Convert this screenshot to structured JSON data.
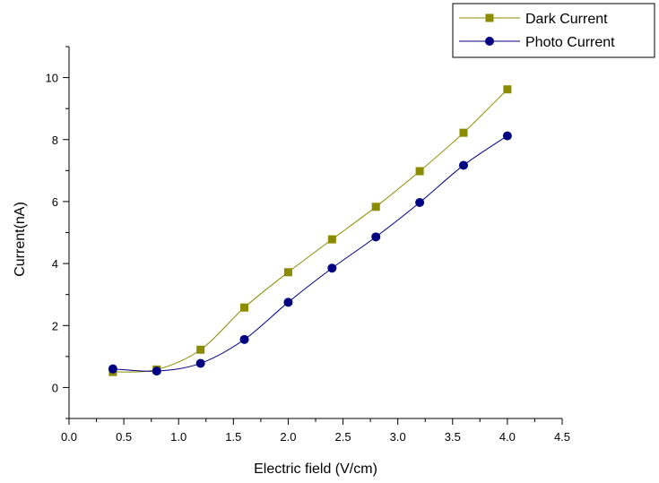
{
  "chart_data": {
    "type": "line",
    "xlabel": "Electric field (V/cm)",
    "ylabel": "Current(nA)",
    "xlim": [
      0.0,
      4.5
    ],
    "ylim": [
      -1,
      11
    ],
    "x_ticks": [
      "0.0",
      "0.5",
      "1.0",
      "1.5",
      "2.0",
      "2.5",
      "3.0",
      "3.5",
      "4.0",
      "4.5"
    ],
    "y_ticks": [
      "0",
      "2",
      "4",
      "6",
      "8",
      "10"
    ],
    "grid": false,
    "legend_position": "top-right",
    "x": [
      0.4,
      0.8,
      1.2,
      1.6,
      2.0,
      2.4,
      2.8,
      3.2,
      3.6,
      4.0
    ],
    "series": [
      {
        "name": "Dark Current",
        "marker": "square",
        "color": "#8b8b00",
        "values": [
          0.5,
          0.58,
          1.22,
          2.58,
          3.72,
          4.78,
          5.83,
          6.98,
          8.22,
          9.62
        ]
      },
      {
        "name": "Photo Current",
        "marker": "circle",
        "color": "#000080",
        "values": [
          0.6,
          0.53,
          0.78,
          1.55,
          2.75,
          3.85,
          4.86,
          5.97,
          7.17,
          8.12
        ]
      }
    ]
  }
}
